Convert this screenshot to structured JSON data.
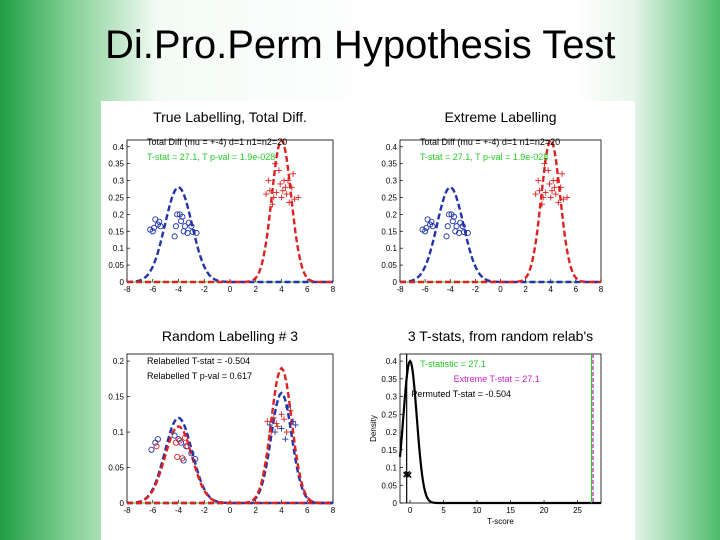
{
  "slide": {
    "title": "Di.Pro.Perm Hypothesis Test"
  },
  "chart_data": [
    {
      "type": "line",
      "title": "True Labelling, Total Diff.",
      "xlim": [
        -8,
        8
      ],
      "ylim": [
        0,
        0.42
      ],
      "xticks": [
        "-8",
        "-6",
        "-4",
        "-2",
        "0",
        "2",
        "4",
        "6",
        "8"
      ],
      "yticks": [
        "0",
        "0.05",
        "0.1",
        "0.15",
        "0.2",
        "0.25",
        "0.3",
        "0.35",
        "0.4"
      ],
      "annotations": [
        {
          "text": "Total Diff (mu = +-4) d=1 n1=n2=20",
          "color": "#000000"
        },
        {
          "text": "T-stat = 27.1, T p-val = 1.9e-028",
          "color": "#22cc22"
        }
      ],
      "series": [
        {
          "color": "#2233aa",
          "marker": "o",
          "points": [
            [
              -6.2,
              0.155
            ],
            [
              -5.9,
              0.16
            ],
            [
              -5.8,
              0.185
            ],
            [
              -5.6,
              0.17
            ],
            [
              -5.5,
              0.178
            ],
            [
              -5.4,
              0.165
            ],
            [
              -4.3,
              0.135
            ],
            [
              -4.2,
              0.165
            ],
            [
              -4.1,
              0.2
            ],
            [
              -3.9,
              0.2
            ],
            [
              -3.8,
              0.18
            ],
            [
              -3.7,
              0.193
            ],
            [
              -3.6,
              0.15
            ],
            [
              -3.5,
              0.165
            ],
            [
              -3.3,
              0.145
            ],
            [
              -3.2,
              0.175
            ],
            [
              -3.0,
              0.165
            ],
            [
              -2.9,
              0.148
            ],
            [
              -2.6,
              0.145
            ],
            [
              -6.0,
              0.15
            ]
          ]
        },
        {
          "color": "#dd2222",
          "marker": "+",
          "points": [
            [
              2.8,
              0.26
            ],
            [
              3.0,
              0.3
            ],
            [
              3.1,
              0.27
            ],
            [
              3.3,
              0.23
            ],
            [
              3.4,
              0.25
            ],
            [
              3.6,
              0.265
            ],
            [
              3.8,
              0.33
            ],
            [
              3.9,
              0.29
            ],
            [
              4.0,
              0.25
            ],
            [
              4.1,
              0.27
            ],
            [
              4.2,
              0.3
            ],
            [
              4.3,
              0.28
            ],
            [
              4.4,
              0.26
            ],
            [
              4.5,
              0.3
            ],
            [
              4.6,
              0.235
            ],
            [
              4.8,
              0.28
            ],
            [
              4.9,
              0.32
            ],
            [
              5.0,
              0.245
            ],
            [
              5.3,
              0.25
            ],
            [
              3.5,
              0.35
            ]
          ]
        }
      ],
      "curves": [
        {
          "color": "#2233aa",
          "mu": -4,
          "amp": 0.28,
          "sigma": 1.05
        },
        {
          "color": "#dd2222",
          "mu": 4,
          "amp": 0.42,
          "sigma": 0.75
        }
      ]
    },
    {
      "type": "line",
      "title": "Extreme Labelling",
      "xlim": [
        -8,
        8
      ],
      "ylim": [
        0,
        0.42
      ],
      "xticks": [
        "-8",
        "-6",
        "-4",
        "-2",
        "0",
        "2",
        "4",
        "6",
        "8"
      ],
      "yticks": [
        "0",
        "0.05",
        "0.1",
        "0.15",
        "0.2",
        "0.25",
        "0.3",
        "0.35",
        "0.4"
      ],
      "annotations": [
        {
          "text": "Total Diff (mu = +-4) d=1 n1=n2=20",
          "color": "#000000"
        },
        {
          "text": "T-stat = 27.1, T p-val = 1.9e-028",
          "color": "#22cc22"
        }
      ],
      "series": [
        {
          "color": "#2233aa",
          "marker": "o",
          "points": [
            [
              -6.2,
              0.155
            ],
            [
              -5.9,
              0.16
            ],
            [
              -5.8,
              0.185
            ],
            [
              -5.6,
              0.17
            ],
            [
              -5.5,
              0.178
            ],
            [
              -5.4,
              0.165
            ],
            [
              -4.3,
              0.135
            ],
            [
              -4.2,
              0.165
            ],
            [
              -4.1,
              0.2
            ],
            [
              -3.9,
              0.2
            ],
            [
              -3.8,
              0.18
            ],
            [
              -3.7,
              0.193
            ],
            [
              -3.6,
              0.15
            ],
            [
              -3.5,
              0.165
            ],
            [
              -3.3,
              0.145
            ],
            [
              -3.2,
              0.175
            ],
            [
              -3.0,
              0.165
            ],
            [
              -2.9,
              0.148
            ],
            [
              -2.6,
              0.145
            ],
            [
              -6.0,
              0.15
            ]
          ]
        },
        {
          "color": "#dd2222",
          "marker": "+",
          "points": [
            [
              2.8,
              0.26
            ],
            [
              3.0,
              0.3
            ],
            [
              3.1,
              0.27
            ],
            [
              3.3,
              0.23
            ],
            [
              3.4,
              0.25
            ],
            [
              3.6,
              0.265
            ],
            [
              3.8,
              0.33
            ],
            [
              3.9,
              0.29
            ],
            [
              4.0,
              0.25
            ],
            [
              4.1,
              0.27
            ],
            [
              4.2,
              0.3
            ],
            [
              4.3,
              0.28
            ],
            [
              4.4,
              0.26
            ],
            [
              4.5,
              0.3
            ],
            [
              4.6,
              0.235
            ],
            [
              4.8,
              0.28
            ],
            [
              4.9,
              0.32
            ],
            [
              5.0,
              0.245
            ],
            [
              5.3,
              0.25
            ],
            [
              3.5,
              0.35
            ]
          ]
        }
      ],
      "curves": [
        {
          "color": "#2233aa",
          "mu": -4,
          "amp": 0.28,
          "sigma": 1.05
        },
        {
          "color": "#dd2222",
          "mu": 4,
          "amp": 0.42,
          "sigma": 0.75
        }
      ]
    },
    {
      "type": "line",
      "title": "Random Labelling # 3",
      "xlim": [
        -8,
        8
      ],
      "ylim": [
        0,
        0.21
      ],
      "xticks": [
        "-8",
        "-6",
        "-4",
        "-2",
        "0",
        "2",
        "4",
        "6",
        "8"
      ],
      "yticks": [
        "0",
        "0.05",
        "0.1",
        "0.15",
        "0.2"
      ],
      "annotations": [
        {
          "text": "Relabelled T-stat = -0.504",
          "color": "#000000"
        },
        {
          "text": "Relabelled T p-val = 0.617",
          "color": "#000000"
        }
      ],
      "series": [
        {
          "color": "#2233aa",
          "marker": "o",
          "points": [
            [
              -6.1,
              0.075
            ],
            [
              -5.8,
              0.085
            ],
            [
              -5.6,
              0.09
            ],
            [
              -4.3,
              0.095
            ],
            [
              -4.0,
              0.09
            ],
            [
              -3.8,
              0.085
            ],
            [
              -3.6,
              0.06
            ],
            [
              -3.4,
              0.08
            ],
            [
              -3.0,
              0.07
            ],
            [
              -2.7,
              0.062
            ]
          ]
        },
        {
          "color": "#dd2222",
          "marker": "o",
          "points": [
            [
              -5.7,
              0.08
            ],
            [
              -4.2,
              0.085
            ],
            [
              -4.1,
              0.065
            ],
            [
              -3.9,
              0.088
            ],
            [
              -3.7,
              0.063
            ],
            [
              -3.5,
              0.092
            ],
            [
              -3.3,
              0.08
            ]
          ]
        },
        {
          "color": "#2233aa",
          "marker": "+",
          "points": [
            [
              3.1,
              0.11
            ],
            [
              3.5,
              0.1
            ],
            [
              4.0,
              0.105
            ],
            [
              4.3,
              0.09
            ],
            [
              4.5,
              0.135
            ],
            [
              4.9,
              0.115
            ],
            [
              5.1,
              0.11
            ]
          ]
        },
        {
          "color": "#dd2222",
          "marker": "+",
          "points": [
            [
              2.9,
              0.115
            ],
            [
              3.2,
              0.1
            ],
            [
              3.4,
              0.12
            ],
            [
              3.7,
              0.108
            ],
            [
              4.0,
              0.125
            ],
            [
              4.2,
              0.118
            ],
            [
              4.4,
              0.1
            ],
            [
              4.7,
              0.13
            ],
            [
              3.6,
              0.112
            ]
          ]
        }
      ],
      "curves": [
        {
          "color": "#2233aa",
          "mu": -4,
          "amp": 0.12,
          "sigma": 1.05
        },
        {
          "color": "#dd2222",
          "mu": -4,
          "amp": 0.108,
          "sigma": 1.05
        },
        {
          "color": "#2233aa",
          "mu": 4,
          "amp": 0.155,
          "sigma": 0.8
        },
        {
          "color": "#dd2222",
          "mu": 4,
          "amp": 0.19,
          "sigma": 0.8
        }
      ]
    },
    {
      "type": "line",
      "title": "3 T-stats, from random relab's",
      "xlabel": "T-score",
      "ylabel": "Density",
      "xlim": [
        -1.5,
        28.5
      ],
      "ylim": [
        0,
        0.42
      ],
      "xticks": [
        "0",
        "5",
        "10",
        "15",
        "20",
        "25"
      ],
      "yticks": [
        "0",
        "0.05",
        "0.1",
        "0.15",
        "0.2",
        "0.25",
        "0.3",
        "0.35",
        "0.4"
      ],
      "annotations": [
        {
          "text": "T-statistic = 27.1",
          "color": "#22cc22"
        },
        {
          "text": "Extreme T-stat = 27.1",
          "color": "#cc22cc"
        },
        {
          "text": "Permuted T-stat = -0.504",
          "color": "#000000"
        }
      ],
      "density": {
        "color": "#000000",
        "mu": 0,
        "amp": 0.4,
        "sigma": 1.0
      },
      "permuted_points": [
        [
          -0.6,
          0.08
        ],
        [
          -0.4,
          0.082
        ],
        [
          -0.2,
          0.079
        ]
      ],
      "vlines": [
        {
          "x": 27.1,
          "color": "#22cc22"
        },
        {
          "x": 27.1,
          "color": "#cc22cc"
        },
        {
          "x": -0.504,
          "color": "#000000"
        }
      ]
    }
  ]
}
